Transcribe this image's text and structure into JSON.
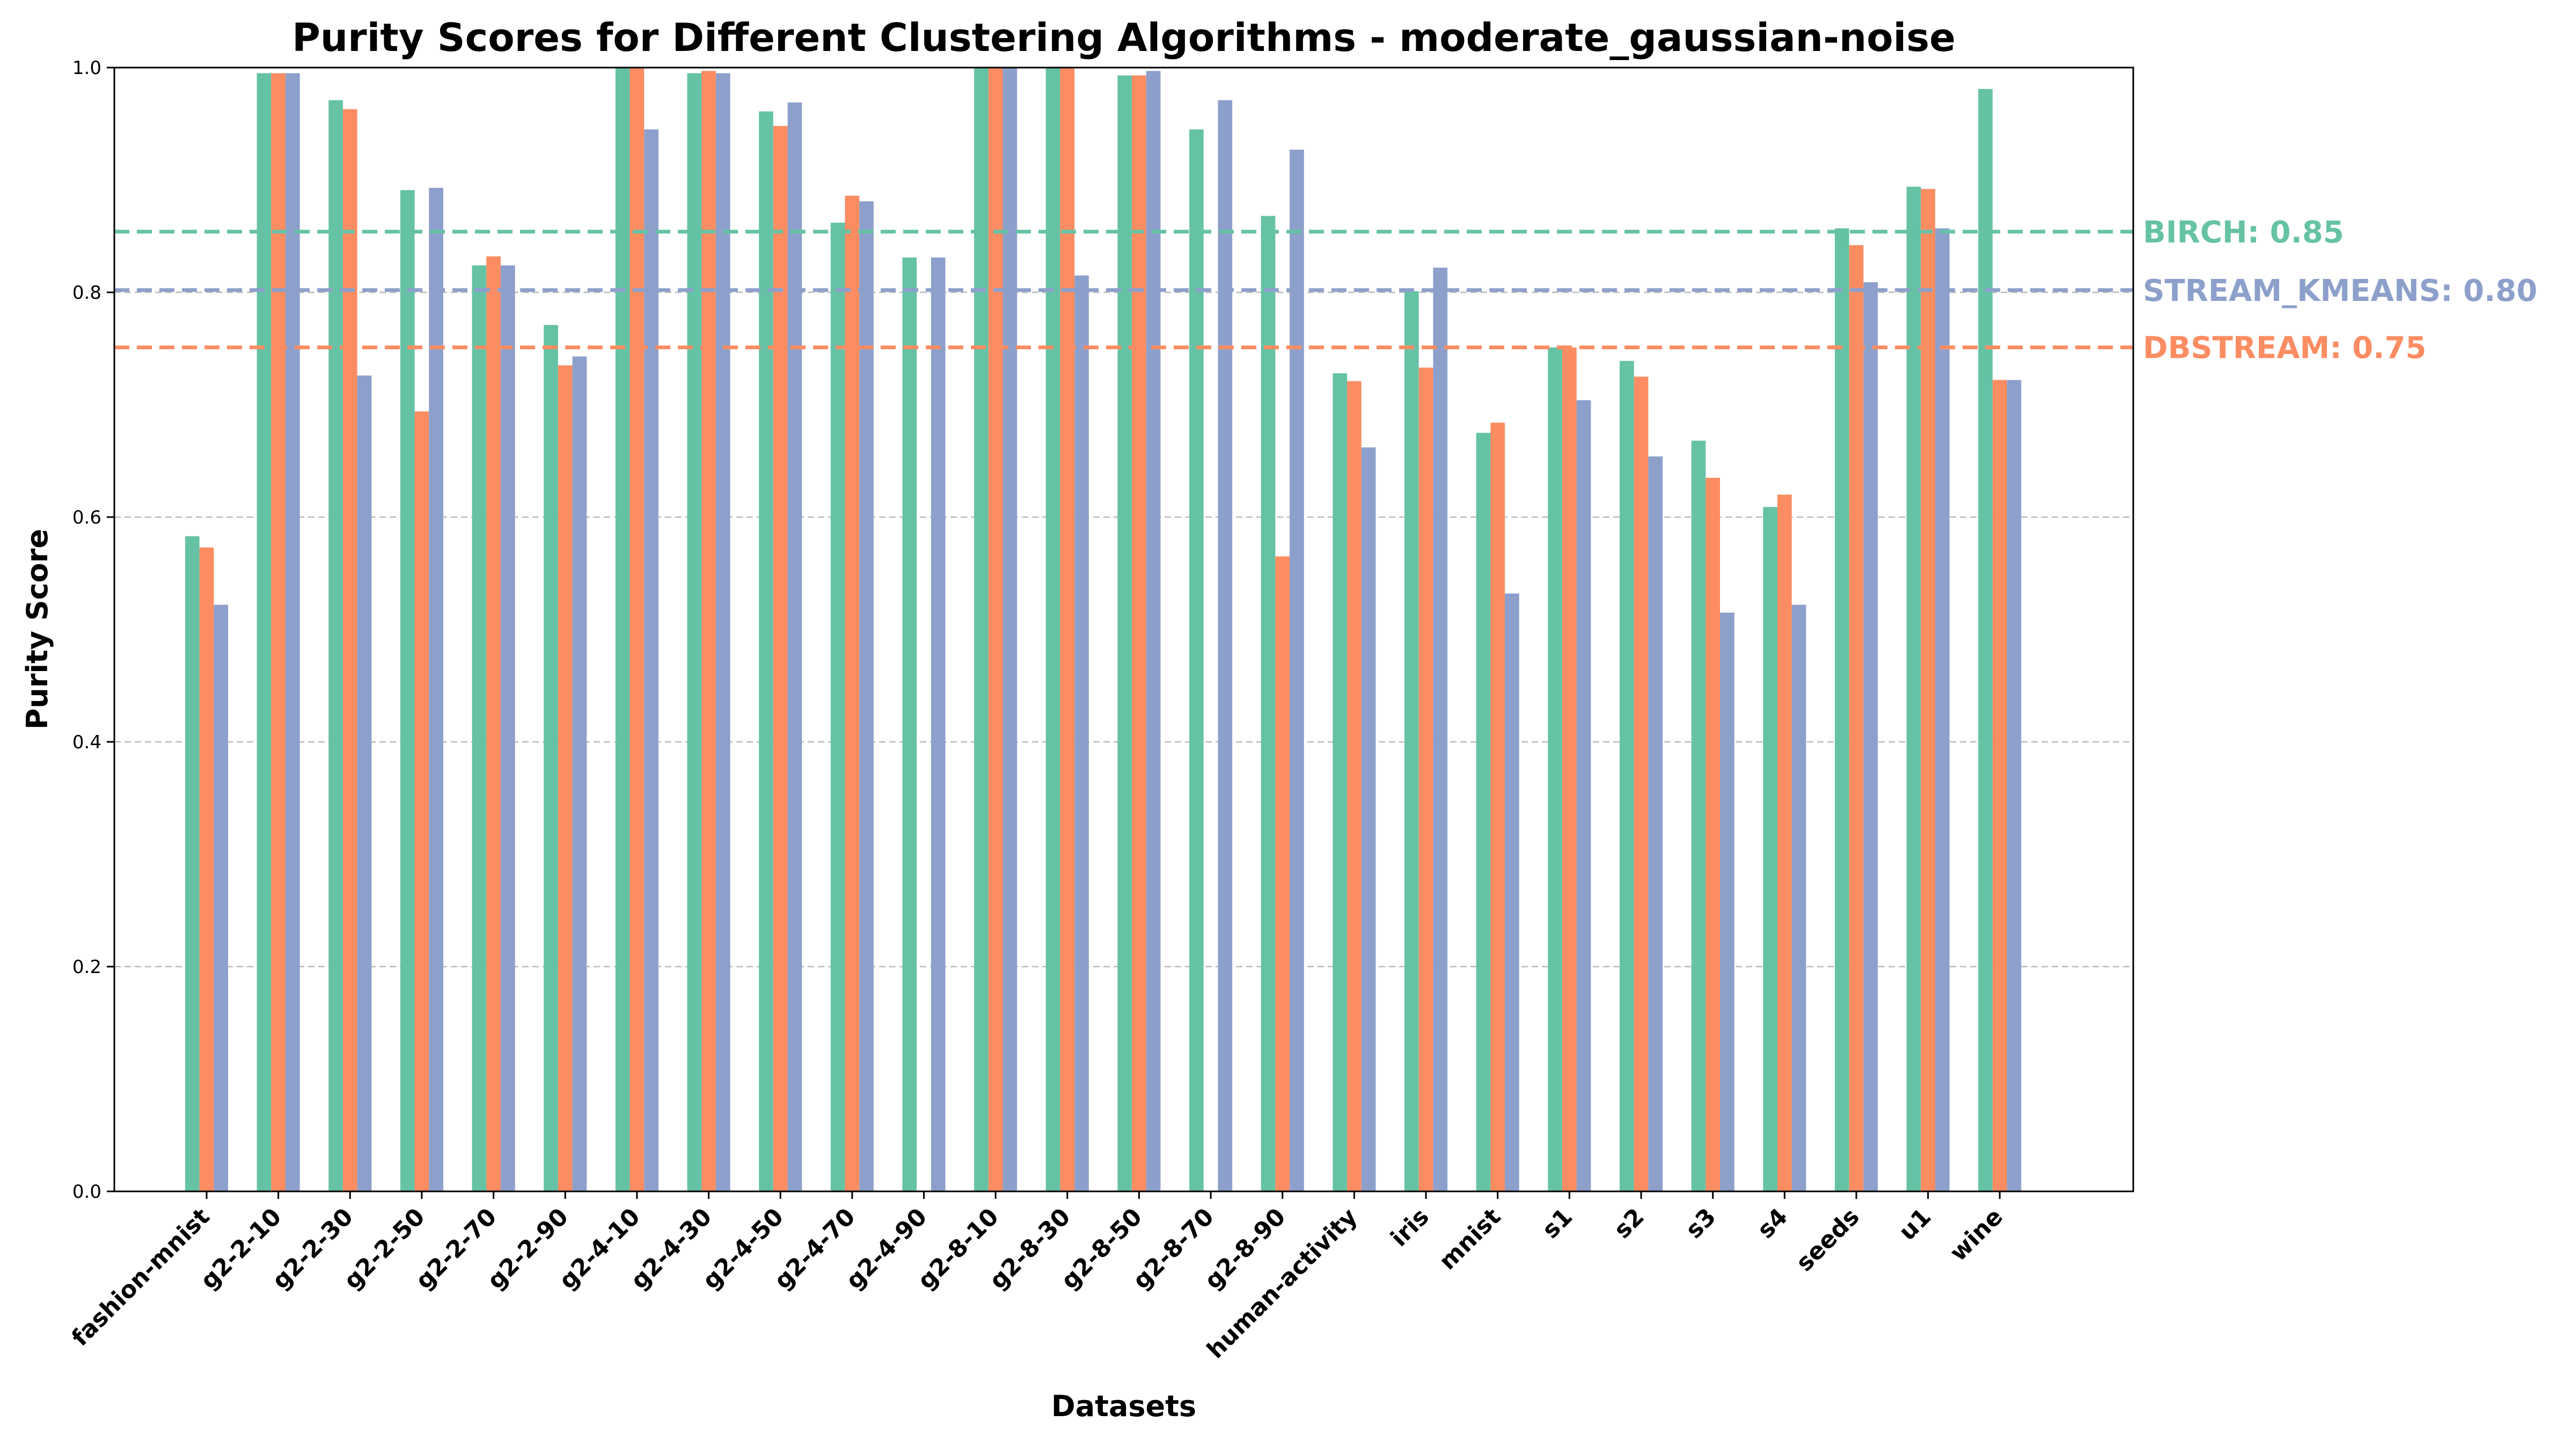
{
  "chart_data": {
    "type": "bar",
    "title": "Purity Scores for Different Clustering Algorithms - moderate_gaussian-noise",
    "xlabel": "Datasets",
    "ylabel": "Purity Score",
    "ylim": [
      0,
      1.0
    ],
    "yticks": [
      "0.0",
      "0.2",
      "0.4",
      "0.6",
      "0.8",
      "1.0"
    ],
    "ytick_values": [
      0,
      0.2,
      0.4,
      0.6,
      0.8,
      1.0
    ],
    "grid": "y-dashed",
    "categories": [
      "fashion-mnist",
      "g2-2-10",
      "g2-2-30",
      "g2-2-50",
      "g2-2-70",
      "g2-2-90",
      "g2-4-10",
      "g2-4-30",
      "g2-4-50",
      "g2-4-70",
      "g2-4-90",
      "g2-8-10",
      "g2-8-30",
      "g2-8-50",
      "g2-8-70",
      "g2-8-90",
      "human-activity",
      "iris",
      "mnist",
      "s1",
      "s2",
      "s3",
      "s4",
      "seeds",
      "u1",
      "wine"
    ],
    "series": [
      {
        "color": "#66c2a5",
        "values": [
          0.583,
          0.995,
          0.971,
          0.891,
          0.824,
          0.771,
          1.0,
          0.995,
          0.961,
          0.862,
          0.831,
          1.0,
          1.0,
          0.993,
          0.945,
          0.868,
          0.728,
          0.801,
          0.675,
          0.751,
          0.739,
          0.668,
          0.609,
          0.857,
          0.894,
          0.981
        ]
      },
      {
        "color": "#fc8d62",
        "values": [
          0.573,
          0.995,
          0.963,
          0.694,
          0.832,
          0.735,
          1.0,
          0.997,
          0.948,
          0.886,
          null,
          1.0,
          1.0,
          0.993,
          null,
          0.565,
          0.721,
          0.733,
          0.684,
          0.751,
          0.725,
          0.635,
          0.62,
          0.842,
          0.892,
          0.722
        ]
      },
      {
        "color": "#8da0cb",
        "values": [
          0.522,
          0.995,
          0.726,
          0.893,
          0.824,
          0.743,
          0.945,
          0.995,
          0.969,
          0.881,
          0.831,
          1.0,
          0.815,
          0.997,
          0.971,
          0.927,
          0.662,
          0.822,
          0.532,
          0.704,
          0.654,
          0.515,
          0.522,
          0.809,
          0.857,
          0.722
        ]
      }
    ],
    "reference_lines": [
      {
        "label": "BIRCH: 0.85",
        "value": 0.854,
        "color": "#66c2a5"
      },
      {
        "label": "STREAM_KMEANS: 0.80",
        "value": 0.802,
        "color": "#8da0cb"
      },
      {
        "label": "DBSTREAM: 0.75",
        "value": 0.751,
        "color": "#fc8d62"
      }
    ]
  }
}
